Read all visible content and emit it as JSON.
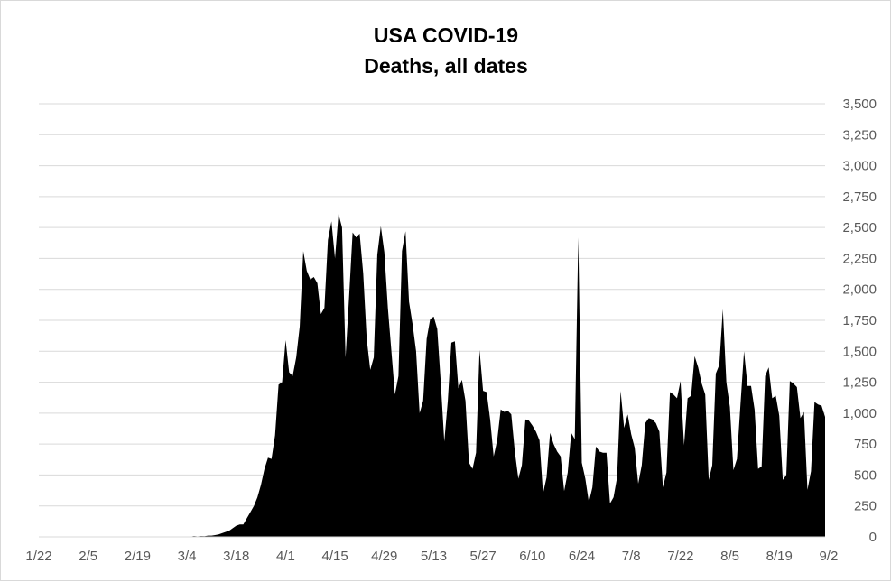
{
  "chart_data": {
    "type": "area",
    "title": "USA COVID-19",
    "subtitle": "Deaths, all dates",
    "xlabel": "",
    "ylabel": "",
    "ylim": [
      0,
      3500
    ],
    "yticks": [
      0,
      250,
      500,
      750,
      1000,
      1250,
      1500,
      1750,
      2000,
      2250,
      2500,
      2750,
      3000,
      3250,
      3500
    ],
    "ytick_labels": [
      "0",
      "250",
      "500",
      "750",
      "1,000",
      "1,250",
      "1,500",
      "1,750",
      "2,000",
      "2,250",
      "2,500",
      "2,750",
      "3,000",
      "3,250",
      "3,500"
    ],
    "xticks": [
      "1/22",
      "2/5",
      "2/19",
      "3/4",
      "3/18",
      "4/1",
      "4/15",
      "4/29",
      "5/13",
      "5/27",
      "6/10",
      "6/24",
      "7/8",
      "7/22",
      "8/5",
      "8/19",
      "9/2"
    ],
    "y_axis_side": "right",
    "grid": true,
    "legend": "none",
    "fill_color": "#000000",
    "x_start": "1/22",
    "x_end": "9/4",
    "values": [
      0,
      0,
      0,
      0,
      0,
      0,
      0,
      0,
      0,
      0,
      0,
      0,
      0,
      0,
      0,
      0,
      0,
      0,
      0,
      0,
      0,
      0,
      0,
      0,
      0,
      0,
      0,
      0,
      0,
      0,
      0,
      0,
      0,
      0,
      0,
      0,
      0,
      0,
      0,
      1,
      1,
      4,
      3,
      2,
      6,
      4,
      6,
      5,
      10,
      10,
      15,
      20,
      30,
      40,
      50,
      70,
      90,
      100,
      100,
      150,
      200,
      250,
      320,
      420,
      550,
      640,
      630,
      820,
      1230,
      1250,
      1590,
      1330,
      1300,
      1450,
      1700,
      2310,
      2150,
      2080,
      2100,
      2050,
      1800,
      1850,
      2400,
      2550,
      2250,
      2610,
      2500,
      1450,
      1940,
      2460,
      2420,
      2450,
      2130,
      1600,
      1350,
      1450,
      2280,
      2510,
      2300,
      1850,
      1500,
      1150,
      1300,
      2310,
      2470,
      1900,
      1720,
      1500,
      1000,
      1100,
      1600,
      1760,
      1780,
      1680,
      1250,
      770,
      1100,
      1570,
      1580,
      1200,
      1270,
      1100,
      600,
      550,
      680,
      1510,
      1180,
      1170,
      950,
      650,
      780,
      1030,
      1010,
      1020,
      990,
      690,
      470,
      580,
      950,
      940,
      900,
      850,
      780,
      350,
      480,
      840,
      750,
      690,
      650,
      370,
      520,
      840,
      790,
      2420,
      600,
      470,
      280,
      400,
      730,
      690,
      680,
      680,
      270,
      320,
      480,
      1180,
      880,
      990,
      830,
      720,
      430,
      580,
      920,
      960,
      950,
      920,
      850,
      400,
      520,
      1170,
      1150,
      1120,
      1260,
      740,
      1120,
      1140,
      1460,
      1370,
      1240,
      1150,
      460,
      580,
      1320,
      1390,
      1840,
      1250,
      1050,
      540,
      630,
      1070,
      1500,
      1220,
      1220,
      1030,
      550,
      570,
      1300,
      1370,
      1120,
      1140,
      980,
      460,
      500,
      1260,
      1240,
      1210,
      960,
      1010,
      380,
      530,
      1090,
      1070,
      1060,
      970
    ]
  }
}
